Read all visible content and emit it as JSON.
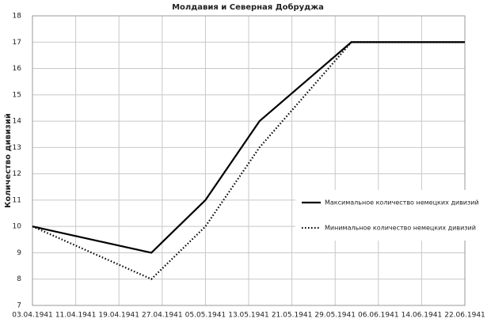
{
  "chart_data": {
    "type": "line",
    "title": "Молдавия и Северная Добруджа",
    "y_label": "Количество дивизий",
    "x": [
      "03.04.1941",
      "25.04.1941",
      "05.05.1941",
      "15.05.1941",
      "01.06.1941",
      "22.06.1941"
    ],
    "series": [
      {
        "name": "Максимальное количество немецких дивизий",
        "color": "#000000",
        "dash": "solid",
        "values": [
          10,
          9,
          11,
          14,
          17,
          17
        ]
      },
      {
        "name": "Минимальное количество немецких дивизий",
        "color": "#000000",
        "dash": "dotted",
        "values": [
          10,
          8,
          10,
          13,
          17,
          17
        ]
      }
    ],
    "xlim": [
      "03.04.1941",
      "22.06.1941"
    ],
    "xticks": [
      "03.04.1941",
      "11.04.1941",
      "19.04.1941",
      "27.04.1941",
      "05.05.1941",
      "13.05.1941",
      "21.05.1941",
      "29.05.1941",
      "06.06.1941",
      "14.06.1941",
      "22.06.1941"
    ],
    "ylim": [
      7,
      18
    ],
    "yticks": [
      7,
      8,
      9,
      10,
      11,
      12,
      13,
      14,
      15,
      16,
      17,
      18
    ],
    "grid": true,
    "legend": "right"
  }
}
